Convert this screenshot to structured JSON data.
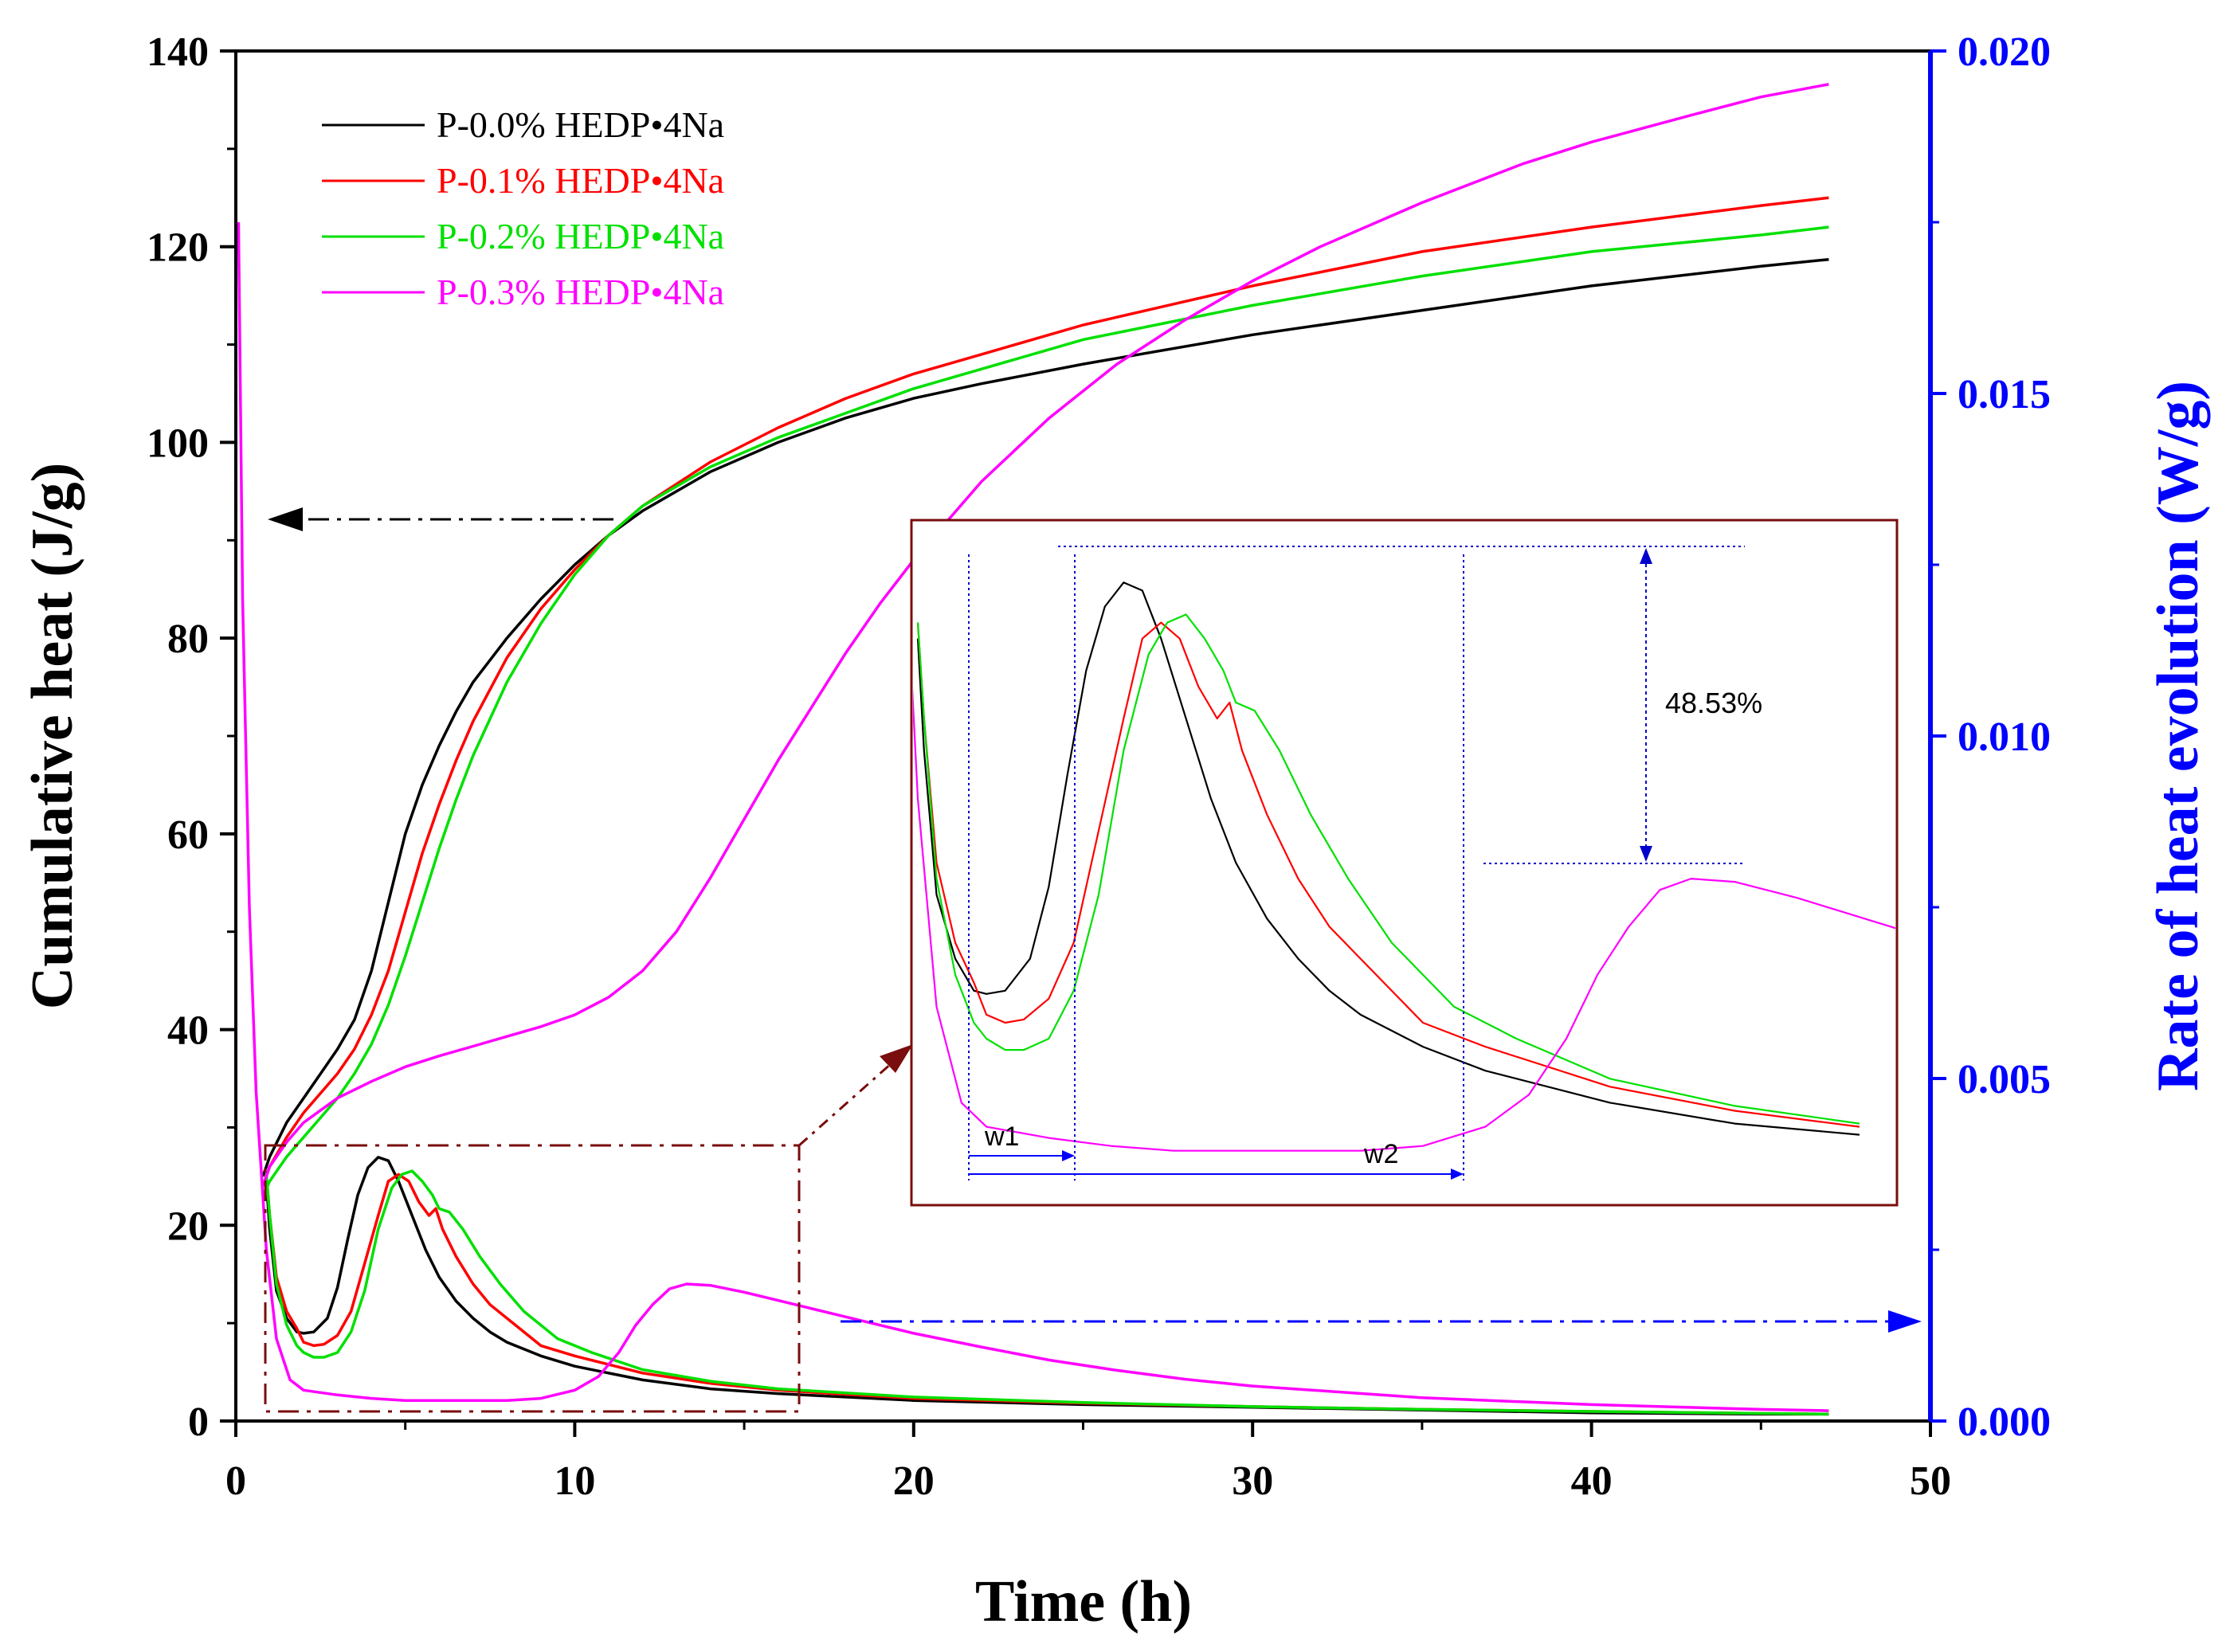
{
  "chart_data": {
    "type": "line",
    "xlabel": "Time (h)",
    "ylabel_left": "Cumulative heat (J/g)",
    "ylabel_right": "Rate of heat evolution (W/g)",
    "xlim": [
      0,
      50
    ],
    "ylim_left": [
      0,
      140
    ],
    "ylim_right": [
      0,
      0.02
    ],
    "x_ticks": [
      0,
      10,
      20,
      30,
      40,
      50
    ],
    "x_tick_labels": [
      "0",
      "10",
      "20",
      "30",
      "40",
      "50"
    ],
    "y_left_ticks": [
      0,
      20,
      40,
      60,
      80,
      100,
      120,
      140
    ],
    "y_left_tick_labels": [
      "0",
      "20",
      "40",
      "60",
      "80",
      "100",
      "120",
      "140"
    ],
    "y_right_ticks": [
      0,
      0.005,
      0.01,
      0.015,
      0.02
    ],
    "y_right_tick_labels": [
      "0.000",
      "0.005",
      "0.010",
      "0.015",
      "0.020"
    ],
    "legend_position": "top-left",
    "colors": {
      "right_axis": "#0000ff",
      "box": "#7a0d0d",
      "inset_guides": "#0000cc"
    },
    "series": [
      {
        "name": "P-0.0% HEDP•4Na",
        "color": "#000000",
        "cumulative_heat": {
          "x": [
            0.8,
            1.0,
            1.5,
            2.0,
            2.5,
            3.0,
            3.5,
            4.0,
            4.5,
            5.0,
            5.5,
            6.0,
            6.5,
            7.0,
            8.0,
            9.0,
            10.0,
            11.0,
            12.0,
            14.0,
            16.0,
            18.0,
            20.0,
            22.0,
            25.0,
            30.0,
            35.0,
            40.0,
            45.0,
            47.0
          ],
          "y": [
            25,
            27,
            30.5,
            33,
            35.5,
            38,
            41,
            46,
            53,
            60,
            65,
            69,
            72.5,
            75.5,
            80,
            84,
            87.5,
            90.5,
            93,
            97,
            100,
            102.5,
            104.5,
            106,
            108,
            111,
            113.5,
            116,
            118,
            118.7
          ]
        },
        "heat_rate": {
          "x": [
            0.9,
            1.0,
            1.2,
            1.5,
            1.8,
            2.0,
            2.3,
            2.7,
            3.0,
            3.3,
            3.6,
            3.9,
            4.2,
            4.5,
            4.8,
            5.2,
            5.6,
            6.0,
            6.5,
            7.0,
            7.5,
            8.0,
            9.0,
            10.0,
            12.0,
            14.0,
            16.0,
            20.0,
            25.0,
            30.0,
            35.0,
            40.0,
            45.0,
            47.0
          ],
          "y": [
            0.0035,
            0.0028,
            0.0019,
            0.0015,
            0.0013,
            0.00128,
            0.0013,
            0.0015,
            0.00195,
            0.00265,
            0.0033,
            0.0037,
            0.00385,
            0.0038,
            0.0035,
            0.003,
            0.0025,
            0.0021,
            0.00175,
            0.0015,
            0.0013,
            0.00115,
            0.00095,
            0.0008,
            0.0006,
            0.00047,
            0.0004,
            0.0003,
            0.00024,
            0.0002,
            0.00016,
            0.00012,
            0.0001,
            0.0001
          ]
        }
      },
      {
        "name": "P-0.1% HEDP•4Na",
        "color": "#ff0000",
        "cumulative_heat": {
          "x": [
            0.8,
            1.0,
            1.5,
            2.0,
            2.5,
            3.0,
            3.5,
            4.0,
            4.5,
            5.0,
            5.5,
            6.0,
            6.5,
            7.0,
            8.0,
            9.0,
            10.0,
            11.0,
            12.0,
            14.0,
            16.0,
            18.0,
            20.0,
            22.0,
            25.0,
            30.0,
            35.0,
            40.0,
            45.0,
            47.0
          ],
          "y": [
            24,
            26,
            29,
            31.5,
            33.5,
            35.5,
            38,
            41.5,
            46,
            52,
            58,
            63,
            67.5,
            71.5,
            78,
            83,
            87,
            90.5,
            93.5,
            98,
            101.5,
            104.5,
            107,
            109,
            112,
            116,
            119.5,
            122,
            124.2,
            125
          ]
        },
        "heat_rate": {
          "x": [
            0.9,
            1.0,
            1.2,
            1.5,
            1.8,
            2.0,
            2.3,
            2.6,
            3.0,
            3.4,
            3.8,
            4.2,
            4.5,
            4.8,
            5.1,
            5.4,
            5.7,
            5.9,
            6.1,
            6.5,
            7.0,
            7.5,
            8.0,
            9.0,
            10.0,
            12.0,
            14.0,
            16.0,
            20.0,
            25.0,
            30.0,
            35.0,
            40.0,
            45.0,
            47.0
          ],
          "y": [
            0.0036,
            0.003,
            0.0021,
            0.0016,
            0.00135,
            0.00115,
            0.0011,
            0.00112,
            0.00125,
            0.0016,
            0.0023,
            0.003,
            0.0035,
            0.0036,
            0.0035,
            0.0032,
            0.003,
            0.0031,
            0.0028,
            0.0024,
            0.002,
            0.0017,
            0.0015,
            0.0011,
            0.00095,
            0.0007,
            0.00055,
            0.00045,
            0.00033,
            0.00026,
            0.00021,
            0.00017,
            0.00014,
            0.00011,
            0.0001
          ]
        }
      },
      {
        "name": "P-0.2% HEDP•4Na",
        "color": "#00e000",
        "cumulative_heat": {
          "x": [
            0.8,
            1.0,
            1.5,
            2.0,
            2.5,
            3.0,
            3.5,
            4.0,
            4.5,
            5.0,
            5.5,
            6.0,
            6.5,
            7.0,
            8.0,
            9.0,
            10.0,
            11.0,
            12.0,
            14.0,
            16.0,
            18.0,
            20.0,
            22.0,
            25.0,
            30.0,
            35.0,
            40.0,
            45.0,
            47.0
          ],
          "y": [
            23,
            24.5,
            27,
            29,
            31,
            33,
            35.5,
            38.5,
            42.5,
            47.5,
            53,
            58.5,
            63.5,
            68,
            75.5,
            81.5,
            86.5,
            90.5,
            93.5,
            97.5,
            100.5,
            103,
            105.5,
            107.5,
            110.5,
            114,
            117,
            119.5,
            121.2,
            122
          ]
        },
        "heat_rate": {
          "x": [
            0.9,
            1.0,
            1.2,
            1.5,
            1.8,
            2.0,
            2.3,
            2.6,
            3.0,
            3.4,
            3.8,
            4.2,
            4.6,
            4.9,
            5.2,
            5.5,
            5.8,
            6.0,
            6.3,
            6.7,
            7.2,
            7.8,
            8.5,
            9.5,
            10.5,
            12.0,
            14.0,
            16.0,
            20.0,
            25.0,
            30.0,
            35.0,
            40.0,
            45.0,
            47.0
          ],
          "y": [
            0.0036,
            0.003,
            0.002,
            0.0014,
            0.0011,
            0.001,
            0.00093,
            0.00093,
            0.001,
            0.0013,
            0.0019,
            0.0028,
            0.0034,
            0.0036,
            0.00365,
            0.0035,
            0.0033,
            0.0031,
            0.00305,
            0.0028,
            0.0024,
            0.002,
            0.0016,
            0.0012,
            0.001,
            0.00075,
            0.00058,
            0.00047,
            0.00035,
            0.00027,
            0.00021,
            0.00017,
            0.00014,
            0.00011,
            0.0001
          ]
        }
      },
      {
        "name": "P-0.3% HEDP•4Na",
        "color": "#ff00ff",
        "cumulative_heat": {
          "x": [
            0.8,
            1.0,
            1.5,
            2.0,
            3.0,
            4.0,
            5.0,
            6.0,
            7.0,
            8.0,
            9.0,
            10.0,
            11.0,
            12.0,
            13.0,
            14.0,
            15.0,
            16.0,
            17.0,
            18.0,
            19.0,
            20.0,
            22.0,
            24.0,
            26.0,
            28.0,
            30.0,
            32.0,
            35.0,
            38.0,
            40.0,
            43.0,
            45.0,
            47.0
          ],
          "y": [
            24,
            26,
            28.5,
            30.5,
            33,
            34.7,
            36.2,
            37.3,
            38.3,
            39.3,
            40.3,
            41.5,
            43.3,
            46,
            50,
            55.5,
            61.5,
            67.5,
            73,
            78.5,
            83.5,
            88,
            96,
            102.5,
            108,
            112.5,
            116.5,
            120,
            124.5,
            128.5,
            130.7,
            133.5,
            135.3,
            136.6
          ]
        },
        "heat_rate": {
          "x": [
            0.08,
            0.2,
            0.4,
            0.6,
            0.9,
            1.2,
            1.6,
            2.0,
            3.0,
            4.0,
            5.0,
            6.0,
            7.0,
            8.0,
            9.0,
            10.0,
            10.7,
            11.3,
            11.8,
            12.3,
            12.8,
            13.3,
            14.0,
            15.0,
            16.0,
            17.0,
            18.0,
            20.0,
            22.0,
            24.0,
            26.0,
            28.0,
            30.0,
            35.0,
            40.0,
            45.0,
            47.0
          ],
          "y": [
            0.0175,
            0.012,
            0.0075,
            0.0048,
            0.0025,
            0.0012,
            0.0006,
            0.00045,
            0.00038,
            0.00033,
            0.0003,
            0.0003,
            0.0003,
            0.0003,
            0.00033,
            0.00045,
            0.00065,
            0.001,
            0.0014,
            0.0017,
            0.00193,
            0.002,
            0.00198,
            0.00188,
            0.00176,
            0.00164,
            0.00152,
            0.00128,
            0.00108,
            0.00089,
            0.00074,
            0.00061,
            0.00051,
            0.00034,
            0.00024,
            0.00017,
            0.00015
          ]
        }
      }
    ],
    "annotations": {
      "inset": {
        "percent_label": "48.53%",
        "w1_label": "w1",
        "w2_label": "w2"
      }
    }
  }
}
